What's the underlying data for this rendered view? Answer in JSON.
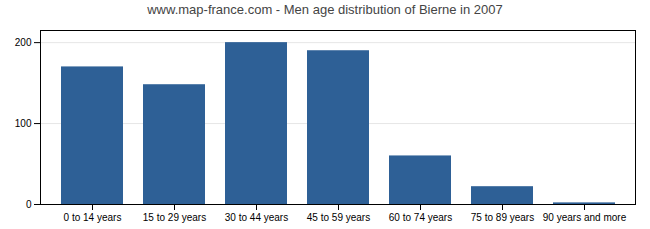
{
  "chart_data": {
    "type": "bar",
    "title": "www.map-france.com - Men age distribution of Bierne in 2007",
    "categories": [
      "0 to 14 years",
      "15 to 29 years",
      "30 to 44 years",
      "45 to 59 years",
      "60 to 74 years",
      "75 to 89 years",
      "90 years and more"
    ],
    "values": [
      170,
      148,
      200,
      190,
      60,
      22,
      2
    ],
    "color": "#2e6096",
    "ylim": [
      0,
      215
    ],
    "yticks": [
      0,
      100,
      200
    ],
    "grid": true
  }
}
